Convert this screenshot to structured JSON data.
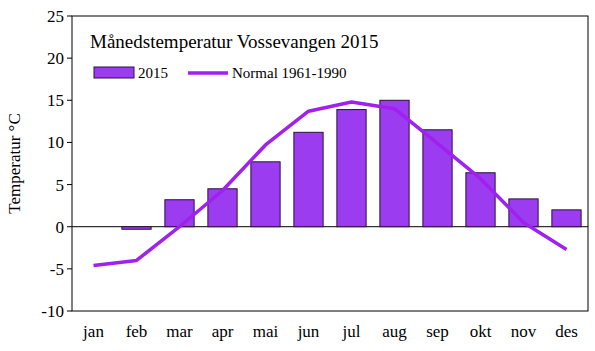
{
  "chart_data": {
    "type": "bar",
    "title": "Månedstemperatur Vossevangen 2015",
    "y_label": "Temperatur °C",
    "categories": [
      "jan",
      "feb",
      "mar",
      "apr",
      "mai",
      "jun",
      "jul",
      "aug",
      "sep",
      "okt",
      "nov",
      "des"
    ],
    "series": [
      {
        "name": "2015",
        "type": "bar",
        "color": "#9b3cf0",
        "values": [
          0,
          -0.3,
          3.2,
          4.5,
          7.7,
          11.2,
          13.9,
          15.0,
          11.5,
          6.4,
          3.3,
          2.0
        ]
      },
      {
        "name": "Normal 1961-1990",
        "type": "line",
        "color": "#a020f0",
        "values": [
          -4.6,
          -4.0,
          0.0,
          4.3,
          9.7,
          13.7,
          14.8,
          14.0,
          9.9,
          5.7,
          0.5,
          -2.7
        ]
      }
    ],
    "ylim": [
      -10,
      25
    ],
    "yticks": [
      -10,
      -5,
      0,
      5,
      10,
      15,
      20,
      25
    ],
    "grid": false,
    "legend": "upper left"
  }
}
